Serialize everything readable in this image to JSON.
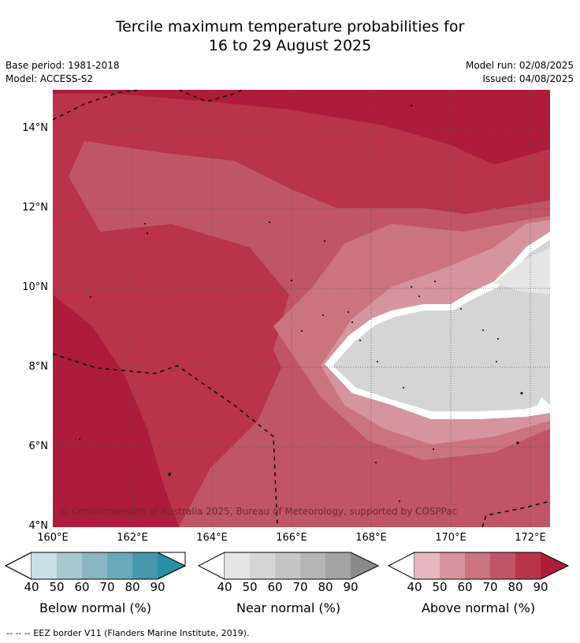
{
  "title": {
    "line1": "Tercile maximum temperature probabilities for",
    "line2": "16 to 29 August 2025"
  },
  "meta": {
    "base_period": "Base period: 1981-2018",
    "model": "Model: ACCESS-S2",
    "model_run": "Model run: 02/08/2025",
    "issued": "Issued: 04/08/2025"
  },
  "map": {
    "lat_labels": [
      "14°N",
      "12°N",
      "10°N",
      "8°N",
      "6°N",
      "4°N"
    ],
    "lon_labels": [
      "160°E",
      "162°E",
      "164°E",
      "166°E",
      "168°E",
      "170°E",
      "172°E"
    ],
    "copyright": "© Commonwealth of Australia 2025, Bureau of Meteorology, supported by COSPPac"
  },
  "colorbars": [
    {
      "name": "below",
      "title": "Below normal (%)",
      "ticks": [
        "40",
        "50",
        "60",
        "70",
        "80",
        "90"
      ],
      "colors": [
        "#c9e0e6",
        "#a7c8cf",
        "#88b6c2",
        "#6aa9ba",
        "#4698ac",
        "#2a8ea6"
      ]
    },
    {
      "name": "near",
      "title": "Near normal (%)",
      "ticks": [
        "40",
        "50",
        "60",
        "70",
        "80",
        "90"
      ],
      "colors": [
        "#e5e5e5",
        "#d5d5d5",
        "#c5c5c5",
        "#b5b5b5",
        "#a3a3a3",
        "#8a8a8a"
      ]
    },
    {
      "name": "above",
      "title": "Above normal (%)",
      "ticks": [
        "40",
        "50",
        "60",
        "70",
        "80",
        "90"
      ],
      "colors": [
        "#e5b8bf",
        "#d6949e",
        "#cb737f",
        "#c05566",
        "#b93448",
        "#ad1c3a"
      ]
    }
  ],
  "footer": "--  --  -- EEZ border V11 (Flanders Marine Institute, 2019)."
}
